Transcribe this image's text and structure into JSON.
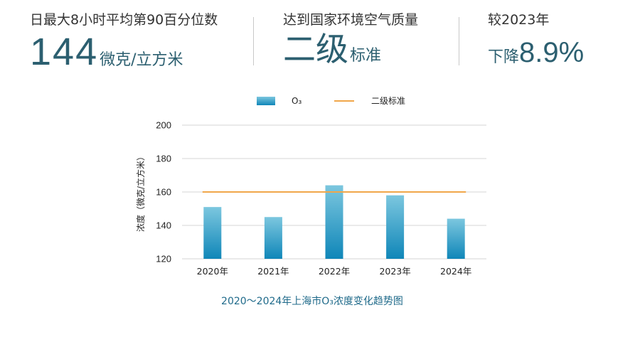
{
  "header": {
    "stat1": {
      "label": "日最大8小时平均第90百分位数",
      "value": "144",
      "unit": "微克/立方米"
    },
    "stat2": {
      "label": "达到国家环境空气质量",
      "value": "二级",
      "unit": "标准"
    },
    "stat3": {
      "label": "较2023年",
      "prefix": "下降",
      "value": "8.9%"
    }
  },
  "colors": {
    "bar_top": "#7cc7df",
    "bar_bottom": "#0f86b8",
    "standard_line": "#f0a74a",
    "grid": "#d4d4d4",
    "accent_text": "#2c5f70",
    "caption": "#1f6a8a"
  },
  "chart_data": {
    "type": "bar",
    "title": "2020～2024年上海市O₃浓度变化趋势图",
    "categories": [
      "2020年",
      "2021年",
      "2022年",
      "2023年",
      "2024年"
    ],
    "series": [
      {
        "name": "O₃",
        "values": [
          151,
          145,
          164,
          158,
          144
        ]
      }
    ],
    "reference_line": {
      "name": "二级标准",
      "value": 160
    },
    "xlabel": "",
    "ylabel": "浓度（微克/立方米）",
    "ylim": [
      120,
      200
    ],
    "yticks": [
      120,
      140,
      160,
      180,
      200
    ],
    "grid": true,
    "legend_position": "top-center"
  }
}
